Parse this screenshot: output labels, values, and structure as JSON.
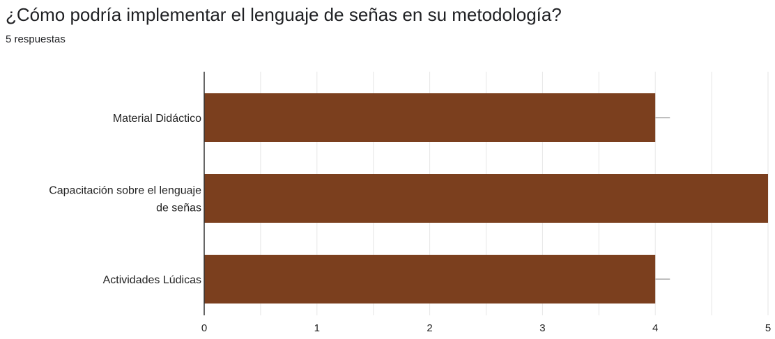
{
  "question": {
    "title": "¿Cómo podría implementar el lenguaje de señas en su metodología?",
    "responses": "5 respuestas"
  },
  "colors": {
    "bar": "#7b3f1e",
    "grid": "#e6e6e6",
    "axis": "#333333",
    "error_bar": "#aaaaaa"
  },
  "chart_data": {
    "type": "bar",
    "orientation": "horizontal",
    "categories": [
      [
        "Material Didáctico"
      ],
      [
        "Capacitación sobre el lenguaje",
        "de señas"
      ],
      [
        "Actividades Lúdicas"
      ]
    ],
    "values": [
      4,
      5,
      4
    ],
    "xlim": [
      0,
      5
    ],
    "x_ticks": [
      0,
      1,
      2,
      3,
      4,
      5
    ],
    "error_upper": [
      4.13,
      5,
      4.13
    ],
    "grid": true,
    "legend": "none",
    "title": "",
    "xlabel": "",
    "ylabel": ""
  }
}
